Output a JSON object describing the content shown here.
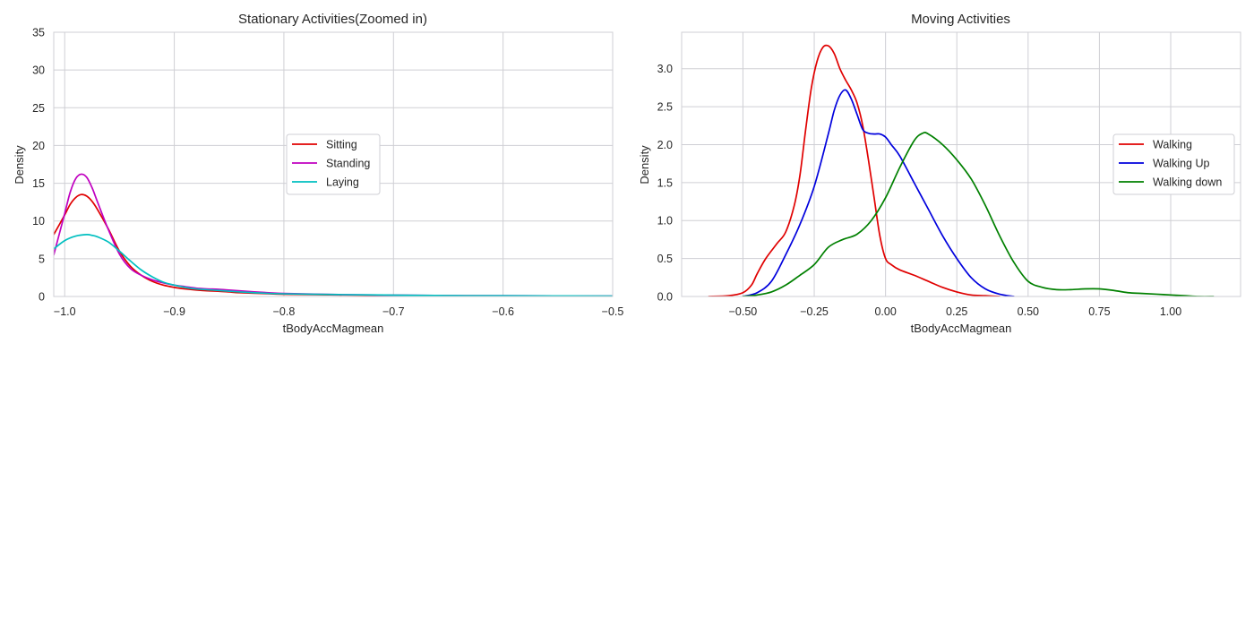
{
  "chart_data": [
    {
      "type": "line",
      "title": "Stationary Activities(Zoomed in)",
      "xlabel": "tBodyAccMagmean",
      "ylabel": "Density",
      "xlim": [
        -1.01,
        -0.5
      ],
      "ylim": [
        0,
        35
      ],
      "xticks": [
        -1.0,
        -0.9,
        -0.8,
        -0.7,
        -0.6,
        -0.5
      ],
      "xtick_labels": [
        "−1.0",
        "−0.9",
        "−0.8",
        "−0.7",
        "−0.6",
        "−0.5"
      ],
      "yticks": [
        0,
        5,
        10,
        15,
        20,
        25,
        30,
        35
      ],
      "ytick_labels": [
        "0",
        "5",
        "10",
        "15",
        "20",
        "25",
        "30",
        "35"
      ],
      "grid": true,
      "legend_position": "center-right",
      "series": [
        {
          "name": "Sitting",
          "color": "#e00000",
          "x": [
            -1.01,
            -1.0,
            -0.995,
            -0.99,
            -0.985,
            -0.98,
            -0.975,
            -0.97,
            -0.96,
            -0.95,
            -0.94,
            -0.93,
            -0.92,
            -0.91,
            -0.9,
            -0.89,
            -0.88,
            -0.87,
            -0.86,
            -0.85,
            -0.84,
            -0.82,
            -0.8,
            -0.75,
            -0.7,
            -0.65,
            -0.6,
            -0.5
          ],
          "y": [
            8.2,
            10.8,
            12.2,
            13.1,
            13.5,
            13.3,
            12.6,
            11.5,
            8.9,
            6.0,
            4.0,
            2.8,
            2.0,
            1.5,
            1.2,
            1.0,
            0.85,
            0.75,
            0.7,
            0.6,
            0.5,
            0.4,
            0.3,
            0.2,
            0.15,
            0.1,
            0.08,
            0.05
          ]
        },
        {
          "name": "Standing",
          "color": "#c000c0",
          "x": [
            -1.01,
            -1.0,
            -0.995,
            -0.99,
            -0.985,
            -0.98,
            -0.975,
            -0.97,
            -0.96,
            -0.95,
            -0.94,
            -0.93,
            -0.92,
            -0.91,
            -0.9,
            -0.89,
            -0.88,
            -0.87,
            -0.86,
            -0.85,
            -0.84,
            -0.82,
            -0.8,
            -0.75,
            -0.7,
            -0.65,
            -0.6,
            -0.5
          ],
          "y": [
            5.5,
            11.0,
            13.8,
            15.6,
            16.2,
            15.8,
            14.4,
            12.5,
            8.8,
            5.6,
            3.7,
            2.8,
            2.2,
            1.8,
            1.5,
            1.3,
            1.1,
            1.0,
            0.95,
            0.85,
            0.75,
            0.55,
            0.4,
            0.25,
            0.18,
            0.12,
            0.1,
            0.06
          ]
        },
        {
          "name": "Laying",
          "color": "#00bfc0",
          "x": [
            -1.01,
            -1.0,
            -0.99,
            -0.98,
            -0.975,
            -0.97,
            -0.96,
            -0.95,
            -0.94,
            -0.93,
            -0.92,
            -0.91,
            -0.9,
            -0.89,
            -0.88,
            -0.86,
            -0.84,
            -0.82,
            -0.8,
            -0.75,
            -0.7,
            -0.65,
            -0.6,
            -0.5
          ],
          "y": [
            6.3,
            7.4,
            8.0,
            8.2,
            8.1,
            7.9,
            7.2,
            6.0,
            4.7,
            3.5,
            2.6,
            1.9,
            1.5,
            1.2,
            1.0,
            0.8,
            0.6,
            0.45,
            0.35,
            0.25,
            0.18,
            0.12,
            0.1,
            0.06
          ]
        }
      ]
    },
    {
      "type": "line",
      "title": "Moving Activities",
      "xlabel": "tBodyAccMagmean",
      "ylabel": "Density",
      "xlim": [
        -0.715,
        1.245
      ],
      "ylim": [
        0,
        3.48
      ],
      "xticks": [
        -0.5,
        -0.25,
        0.0,
        0.25,
        0.5,
        0.75,
        1.0
      ],
      "xtick_labels": [
        "−0.50",
        "−0.25",
        "0.00",
        "0.25",
        "0.50",
        "0.75",
        "1.00"
      ],
      "yticks": [
        0.0,
        0.5,
        1.0,
        1.5,
        2.0,
        2.5,
        3.0
      ],
      "ytick_labels": [
        "0.0",
        "0.5",
        "1.0",
        "1.5",
        "2.0",
        "2.5",
        "3.0"
      ],
      "grid": true,
      "legend_position": "center-right",
      "series": [
        {
          "name": "Walking",
          "color": "#e00000",
          "x": [
            -0.62,
            -0.55,
            -0.5,
            -0.47,
            -0.45,
            -0.42,
            -0.38,
            -0.35,
            -0.32,
            -0.3,
            -0.28,
            -0.26,
            -0.24,
            -0.22,
            -0.2,
            -0.18,
            -0.16,
            -0.14,
            -0.12,
            -0.1,
            -0.08,
            -0.06,
            -0.04,
            -0.02,
            0.0,
            0.02,
            0.05,
            0.1,
            0.15,
            0.2,
            0.25,
            0.3,
            0.35,
            0.4
          ],
          "y": [
            0.0,
            0.01,
            0.05,
            0.15,
            0.3,
            0.5,
            0.7,
            0.85,
            1.2,
            1.6,
            2.2,
            2.75,
            3.1,
            3.28,
            3.3,
            3.2,
            3.0,
            2.85,
            2.72,
            2.55,
            2.25,
            1.8,
            1.3,
            0.8,
            0.5,
            0.42,
            0.35,
            0.28,
            0.2,
            0.12,
            0.06,
            0.02,
            0.01,
            0.0
          ]
        },
        {
          "name": "Walking Up",
          "color": "#0000dd",
          "x": [
            -0.5,
            -0.45,
            -0.4,
            -0.35,
            -0.3,
            -0.25,
            -0.2,
            -0.18,
            -0.16,
            -0.14,
            -0.12,
            -0.1,
            -0.08,
            -0.06,
            -0.04,
            -0.02,
            0.0,
            0.02,
            0.05,
            0.1,
            0.15,
            0.2,
            0.25,
            0.3,
            0.35,
            0.4,
            0.45
          ],
          "y": [
            0.0,
            0.05,
            0.2,
            0.55,
            0.95,
            1.45,
            2.15,
            2.45,
            2.65,
            2.72,
            2.6,
            2.4,
            2.2,
            2.15,
            2.14,
            2.14,
            2.1,
            2.0,
            1.85,
            1.5,
            1.15,
            0.8,
            0.5,
            0.25,
            0.1,
            0.03,
            0.0
          ]
        },
        {
          "name": "Walking down",
          "color": "#008000",
          "x": [
            -0.5,
            -0.45,
            -0.4,
            -0.35,
            -0.3,
            -0.25,
            -0.2,
            -0.15,
            -0.1,
            -0.05,
            0.0,
            0.05,
            0.1,
            0.13,
            0.15,
            0.2,
            0.25,
            0.3,
            0.35,
            0.4,
            0.45,
            0.5,
            0.55,
            0.6,
            0.65,
            0.7,
            0.75,
            0.8,
            0.85,
            0.9,
            0.95,
            1.0,
            1.05,
            1.1,
            1.15
          ],
          "y": [
            0.0,
            0.02,
            0.06,
            0.15,
            0.28,
            0.42,
            0.65,
            0.75,
            0.82,
            1.0,
            1.3,
            1.7,
            2.05,
            2.15,
            2.14,
            2.0,
            1.8,
            1.55,
            1.2,
            0.8,
            0.45,
            0.2,
            0.12,
            0.09,
            0.09,
            0.1,
            0.1,
            0.08,
            0.05,
            0.04,
            0.03,
            0.02,
            0.01,
            0.0,
            0.0
          ]
        }
      ]
    }
  ]
}
